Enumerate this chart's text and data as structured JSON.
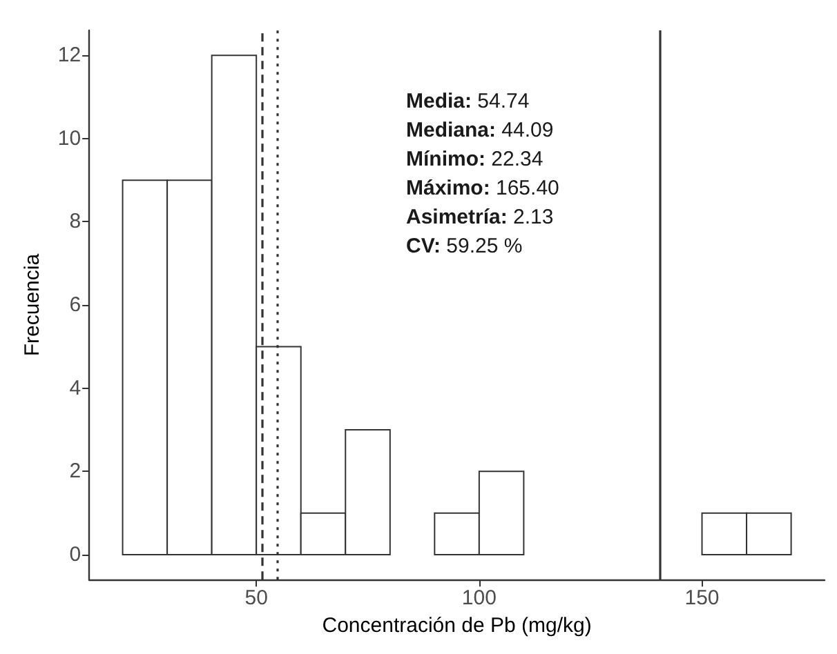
{
  "chart_data": {
    "type": "histogram",
    "xlabel": "Concentración de Pb (mg/kg)",
    "ylabel": "Frecuencia",
    "bins": [
      20,
      30,
      40,
      50,
      60,
      70,
      80,
      90,
      100,
      110,
      120,
      130,
      140,
      150,
      160,
      170
    ],
    "values": [
      9,
      9,
      12,
      5,
      1,
      3,
      0,
      1,
      2,
      0,
      0,
      0,
      0,
      1,
      1
    ],
    "color": "#ffffff",
    "xlim": [
      12.5,
      177.5
    ],
    "xticks": [
      50,
      100,
      150
    ],
    "ylim": [
      -0.6,
      12.6
    ],
    "yticks": [
      0,
      2,
      4,
      6,
      8,
      10,
      12
    ],
    "ref_lines": [
      {
        "axis": "x",
        "value": 51.3,
        "line_style": "dashed",
        "color": "#333333"
      },
      {
        "axis": "x",
        "value": 54.7,
        "line_style": "dotted",
        "color": "#333333"
      },
      {
        "axis": "x",
        "value": 140.4,
        "line_style": "solid",
        "color": "#333333"
      }
    ],
    "annotations": [
      "Media: 54.74",
      "Mediana: 44.09",
      "Mínimo: 22.34",
      "Máximo: 165.40",
      "Asimetría: 2.13",
      "CV: 59.25 %"
    ]
  }
}
